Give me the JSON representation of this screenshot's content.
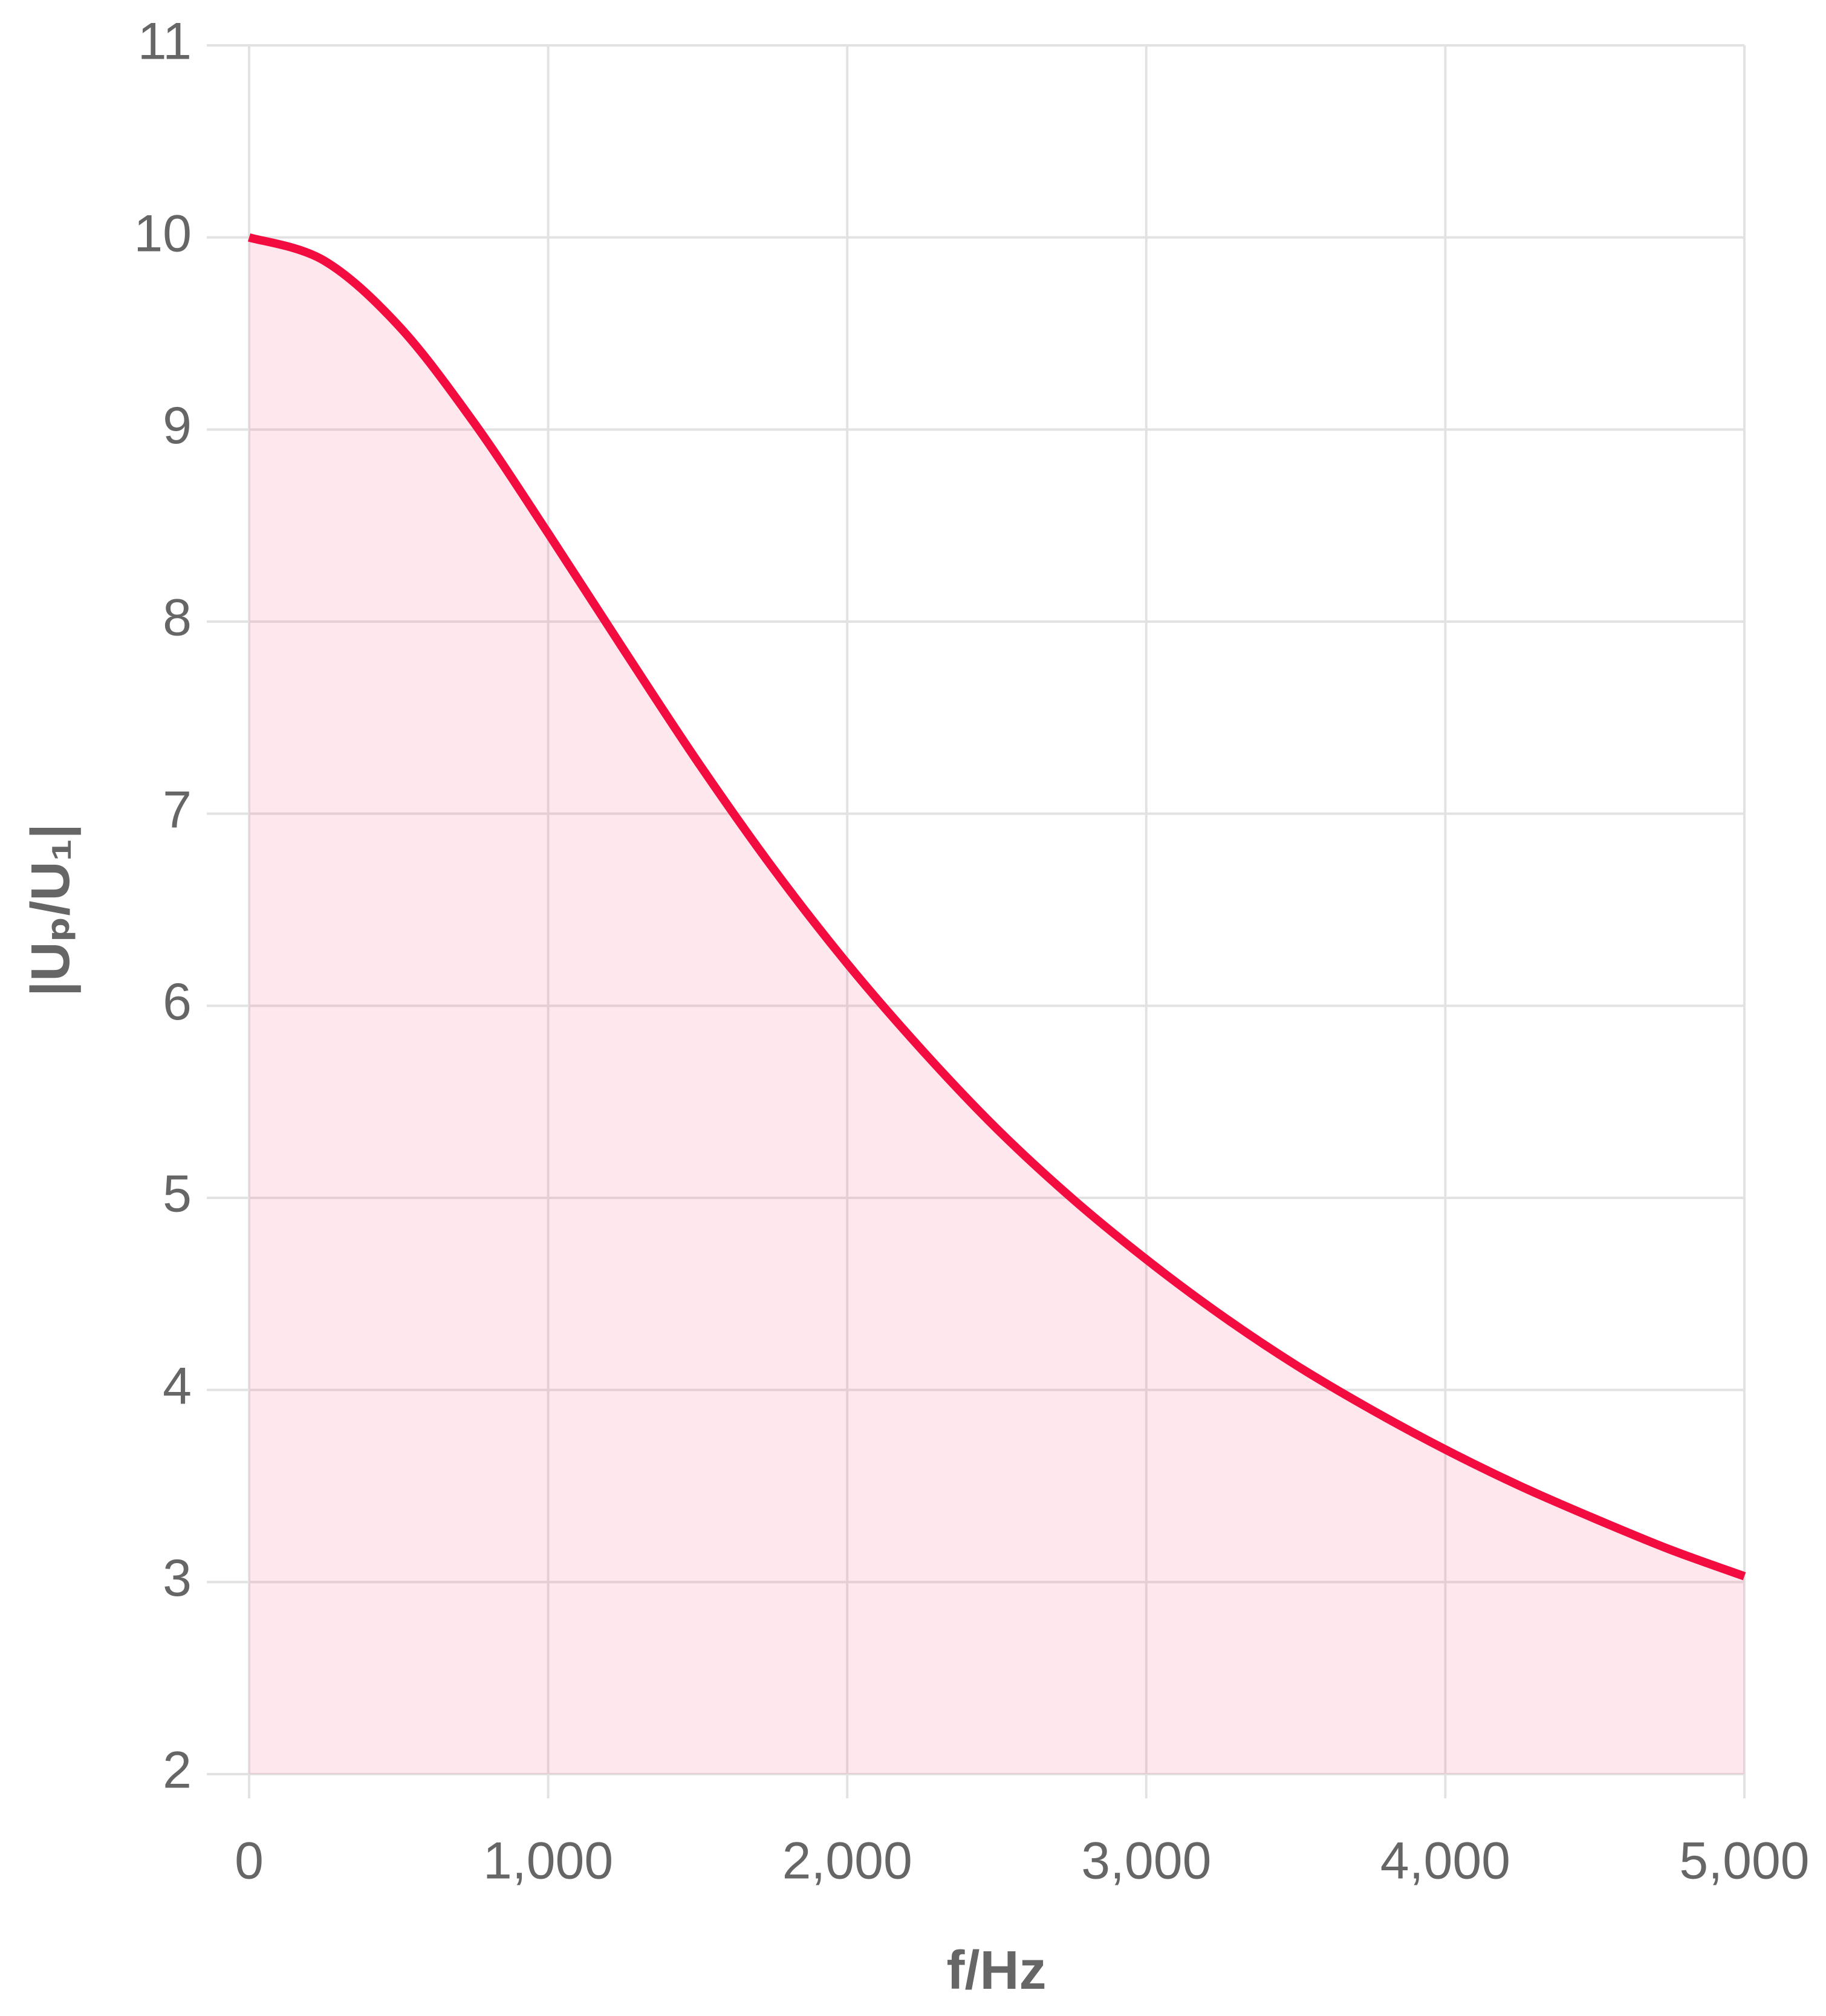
{
  "chart_data": {
    "type": "area",
    "xlabel": "f/Hz",
    "ylabel": "|Uₚ/U₁|",
    "x": [
      0,
      250,
      500,
      750,
      1000,
      1250,
      1500,
      1750,
      2000,
      2250,
      2500,
      2750,
      3000,
      3250,
      3500,
      3750,
      4000,
      4250,
      4500,
      4750,
      5000
    ],
    "values": [
      10,
      9.88,
      9.54,
      9.04,
      8.46,
      7.86,
      7.27,
      6.72,
      6.22,
      5.77,
      5.36,
      5.0,
      4.68,
      4.39,
      4.13,
      3.9,
      3.69,
      3.5,
      3.33,
      3.17,
      3.03
    ],
    "color": "#f20c40",
    "fill": "rgba(255,99,132,0.15)",
    "xlim": [
      0,
      5000
    ],
    "xticks": [
      0,
      {
        "value": 1000,
        "label": "1,000"
      },
      {
        "value": 2000,
        "label": "2,000"
      },
      {
        "value": 3000,
        "label": "3,000"
      },
      {
        "value": 4000,
        "label": "4,000"
      },
      {
        "value": 5000,
        "label": "5,000"
      }
    ],
    "ylim": [
      2,
      11
    ],
    "yticks": [
      2,
      3,
      4,
      5,
      6,
      7,
      8,
      9,
      10,
      11
    ],
    "grid": true
  }
}
